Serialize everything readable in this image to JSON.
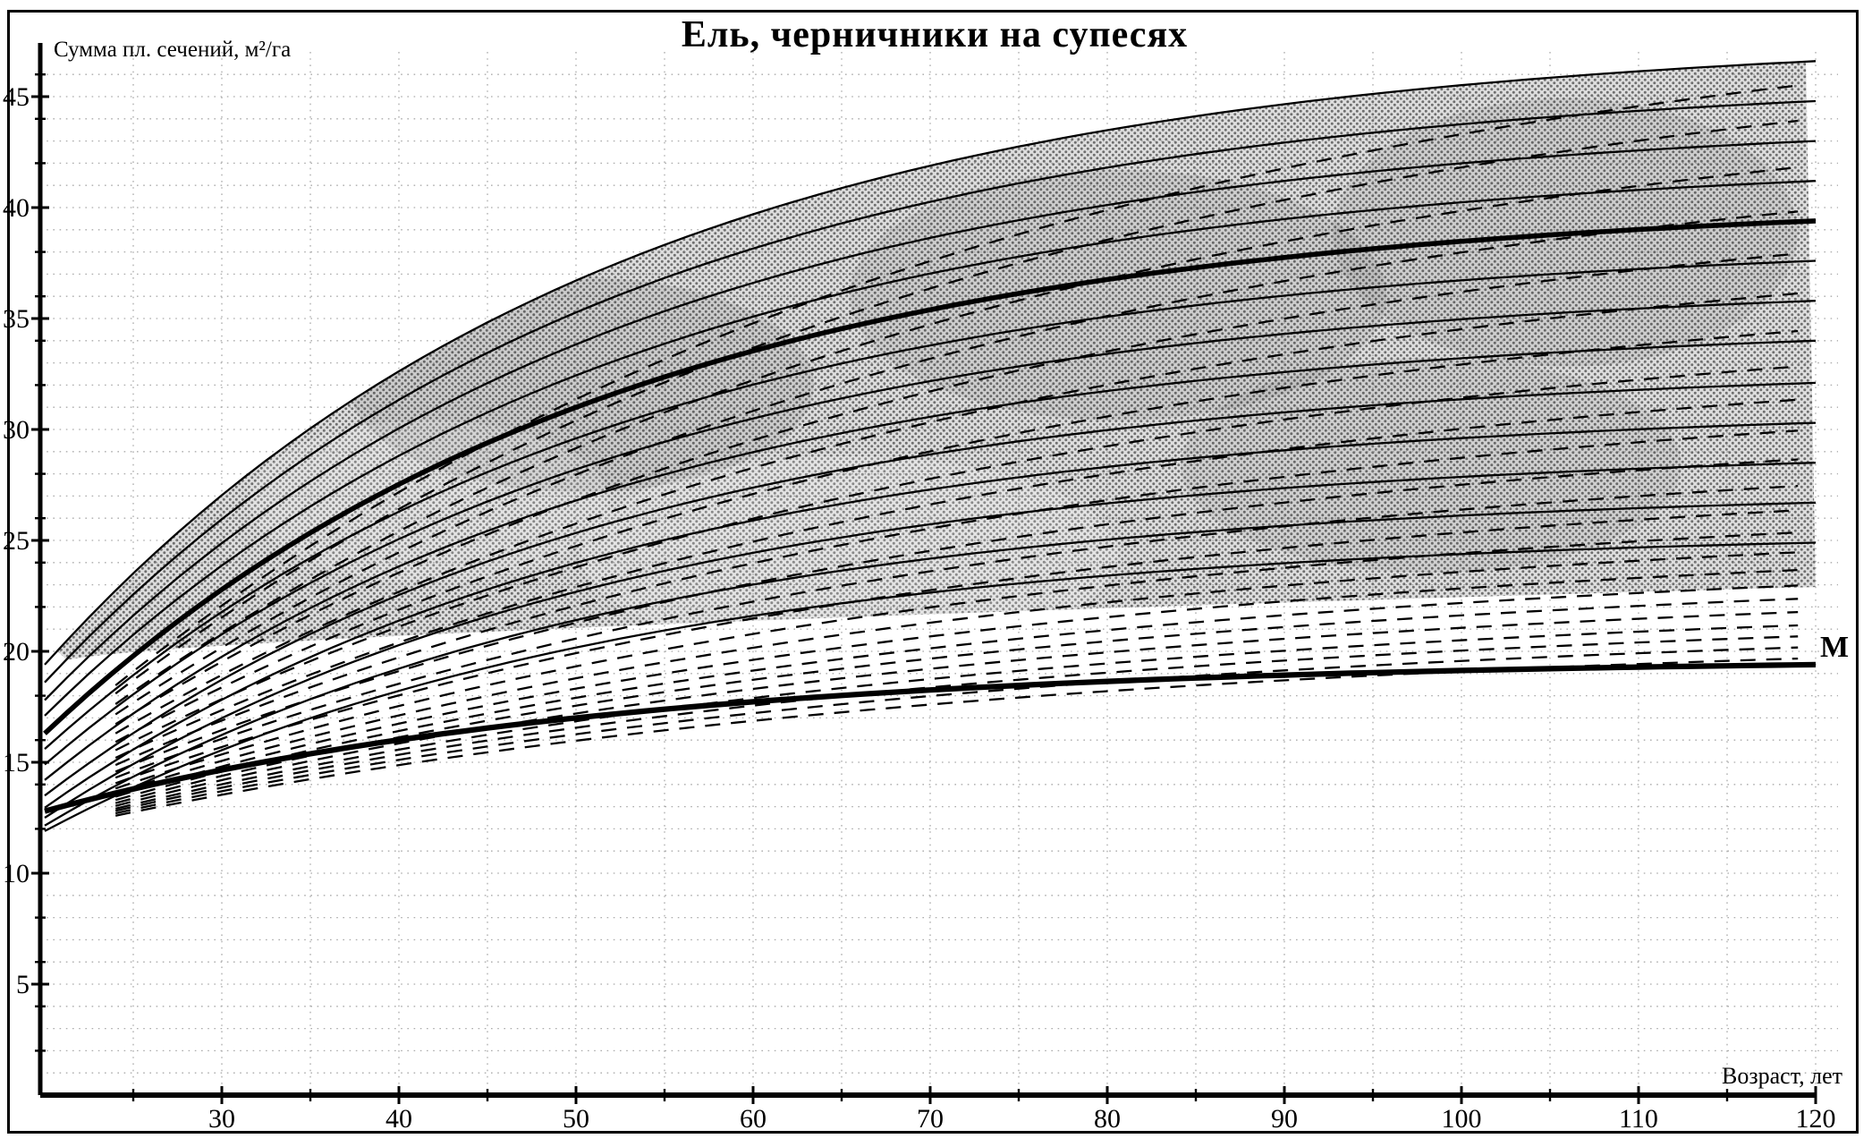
{
  "colors": {
    "ink": "#000000",
    "grid": "#8f8f8f",
    "halftone_bg": "#dedede",
    "halftone_dot": "#6f6f6f",
    "background": "#ffffff"
  },
  "labels": {
    "m_label": "M"
  },
  "chart_data": {
    "type": "line",
    "title": "Ель, черничники на супесях",
    "xlabel": "Возраст, лет",
    "ylabel": "Сумма пл. сечений, м²/га",
    "x_range": [
      20,
      120
    ],
    "y_range": [
      0,
      47
    ],
    "grid": "dotted, horizontal every 1 m²/ga, vertical every 5 years",
    "x_ticks_major": [
      30,
      40,
      50,
      60,
      70,
      80,
      90,
      100,
      110,
      120
    ],
    "x_ticks_minor": [
      25,
      35,
      45,
      55,
      65,
      75,
      85,
      95,
      105,
      115
    ],
    "y_ticks_major": [
      5,
      10,
      15,
      20,
      25,
      30,
      35,
      40,
      45
    ],
    "y_ticks_minor": [
      2,
      4,
      6,
      8,
      12,
      14,
      16,
      18,
      22,
      24,
      26,
      28,
      32,
      34,
      36,
      38,
      42,
      44,
      46
    ],
    "shape": {
      "solid_tau": 32,
      "dashed_tau": 50,
      "dashed_start_age": 24
    },
    "solid_curves_start_end_at_age_20_120": [
      [
        19.4,
        46.6
      ],
      [
        18.6,
        44.8
      ],
      [
        17.8,
        43.0
      ],
      [
        17.1,
        41.2
      ],
      [
        15.6,
        37.6
      ],
      [
        14.9,
        35.8
      ],
      [
        14.2,
        34.0
      ],
      [
        13.5,
        32.1
      ],
      [
        12.95,
        30.3
      ],
      [
        12.5,
        28.5
      ],
      [
        12.15,
        26.7
      ],
      [
        11.9,
        24.9
      ]
    ],
    "thick_mean_curve_start_end": [
      16.3,
      39.4
    ],
    "m_curve_start_end": [
      12.8,
      19.4
    ],
    "m_curve_label": "M",
    "dashed_curves_start_end": [
      [
        11.9,
        19.7
      ],
      [
        11.97,
        20.2
      ],
      [
        12.04,
        20.7
      ],
      [
        12.1,
        21.2
      ],
      [
        12.18,
        21.8
      ],
      [
        12.26,
        22.4
      ],
      [
        12.35,
        23.0
      ],
      [
        12.45,
        23.7
      ],
      [
        12.56,
        24.5
      ],
      [
        12.69,
        25.4
      ],
      [
        12.85,
        26.4
      ],
      [
        13.02,
        27.5
      ],
      [
        13.2,
        28.7
      ],
      [
        13.4,
        30.0
      ],
      [
        13.62,
        31.4
      ],
      [
        13.85,
        32.9
      ],
      [
        14.1,
        34.5
      ],
      [
        14.36,
        36.2
      ],
      [
        14.64,
        38.0
      ],
      [
        14.94,
        39.9
      ],
      [
        15.25,
        41.9
      ],
      [
        15.57,
        44.0
      ],
      [
        15.82,
        45.6
      ]
    ],
    "shaded_band": {
      "description": "halftone gray zone between topmost solid curve and a gently rising lower boundary",
      "top_curve": [
        19.4,
        46.6
      ],
      "bottom_start_value": 19.55,
      "bottom_end_value": 22.9,
      "bottom_rise": 3.35,
      "bottom_exp": 0.65,
      "tip_age": 21
    }
  }
}
